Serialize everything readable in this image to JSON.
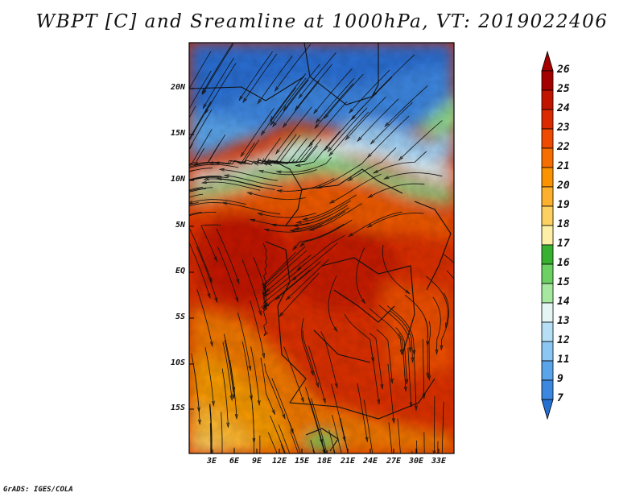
{
  "title": "WBPT [C] and Sreamline at 1000hPa, VT: 2019022406",
  "footer": "GrADS: IGES/COLA",
  "map": {
    "lat_labels": [
      "20N",
      "15N",
      "10N",
      "5N",
      "EQ",
      "5S",
      "10S",
      "15S"
    ],
    "lon_labels": [
      "3E",
      "6E",
      "9E",
      "12E",
      "15E",
      "18E",
      "21E",
      "24E",
      "27E",
      "30E",
      "33E"
    ]
  },
  "colorbar": {
    "labels": [
      "26",
      "25",
      "24",
      "23",
      "22",
      "21",
      "20",
      "19",
      "18",
      "17",
      "16",
      "15",
      "14",
      "13",
      "12",
      "11",
      "9",
      "7"
    ],
    "colors": [
      "#a50000",
      "#c21500",
      "#dc2a00",
      "#ee4a00",
      "#f76e00",
      "#fb9200",
      "#fcb02e",
      "#fdd062",
      "#fdf0a6",
      "#38b030",
      "#6cd063",
      "#a6e8a0",
      "#e3f6f3",
      "#b6dff5",
      "#8cc6f2",
      "#5aa4ea",
      "#3c88e0",
      "#256ed2"
    ]
  }
}
